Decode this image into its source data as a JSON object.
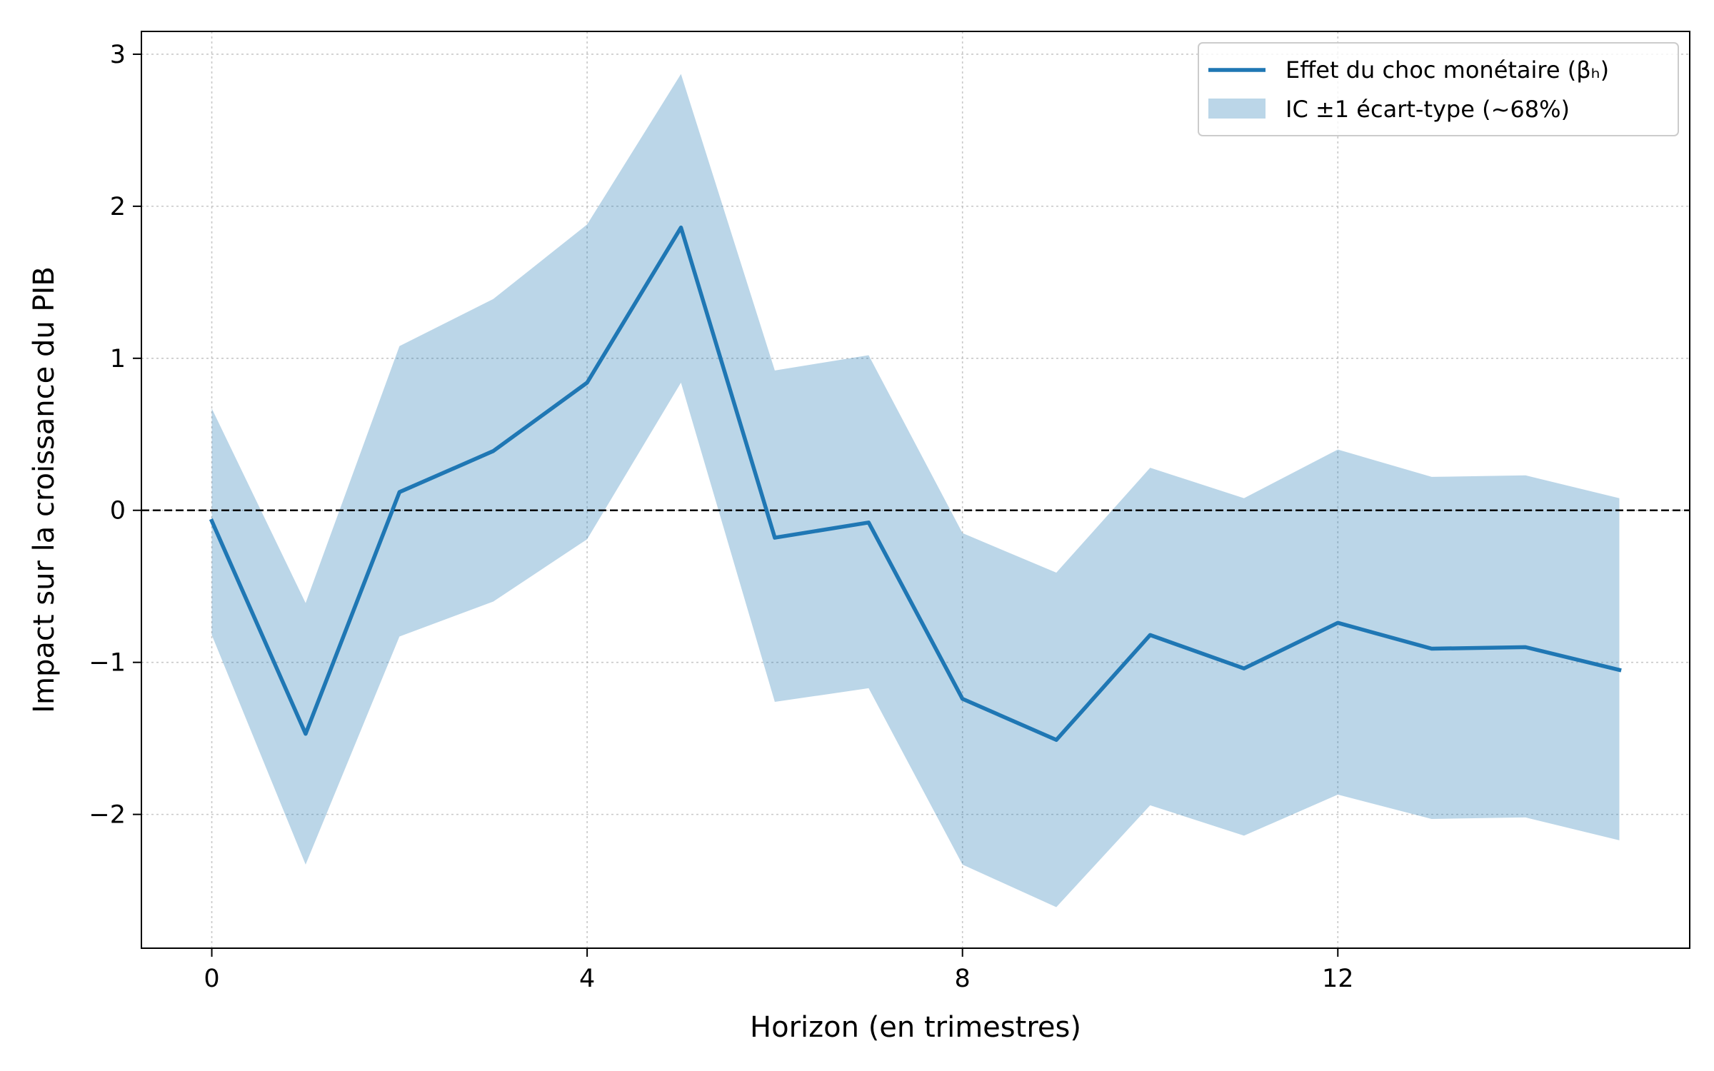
{
  "chart_data": {
    "type": "line",
    "title": "",
    "xlabel": "Horizon (en trimestres)",
    "ylabel": "Impact sur la croissance du PIB",
    "xlim": [
      -0.75,
      15.75
    ],
    "ylim": [
      -2.88,
      3.15
    ],
    "xticks": [
      0,
      4,
      8,
      12
    ],
    "xtick_labels": [
      "0",
      "4",
      "8",
      "12"
    ],
    "yticks": [
      -2,
      -1,
      0,
      1,
      2,
      3
    ],
    "ytick_labels": [
      "−2",
      "−1",
      "0",
      "1",
      "2",
      "3"
    ],
    "grid": true,
    "reference_line": {
      "y": 0,
      "style": "dashed"
    },
    "legend_position": "top-right",
    "x": [
      0,
      1,
      2,
      3,
      4,
      5,
      6,
      7,
      8,
      9,
      10,
      11,
      12,
      13,
      14,
      15
    ],
    "series": [
      {
        "name": "Effet du choc monétaire (βₕ)",
        "kind": "line",
        "color": "#1f77b4",
        "values": [
          -0.07,
          -1.47,
          0.12,
          0.39,
          0.84,
          1.86,
          -0.18,
          -0.08,
          -1.24,
          -1.51,
          -0.82,
          -1.04,
          -0.74,
          -0.91,
          -0.9,
          -1.05
        ]
      },
      {
        "name": "IC ±1 écart-type (~68%)",
        "kind": "band",
        "color": "#1f77b4",
        "opacity": 0.3,
        "lower": [
          -0.82,
          -2.33,
          -0.83,
          -0.6,
          -0.19,
          0.84,
          -1.26,
          -1.17,
          -2.33,
          -2.61,
          -1.94,
          -2.14,
          -1.87,
          -2.03,
          -2.02,
          -2.17
        ],
        "upper": [
          0.67,
          -0.61,
          1.08,
          1.39,
          1.88,
          2.87,
          0.92,
          1.02,
          -0.15,
          -0.41,
          0.28,
          0.08,
          0.4,
          0.22,
          0.23,
          0.08
        ]
      }
    ]
  }
}
